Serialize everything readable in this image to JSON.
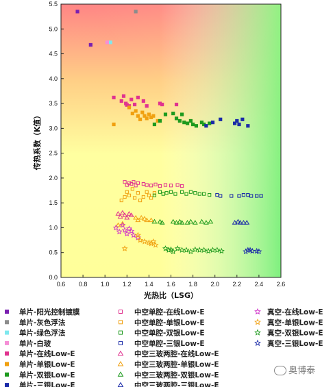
{
  "chart_data": {
    "type": "scatter",
    "xlabel": "光热比（LSG）",
    "ylabel": "传热系数（K值）",
    "xlim": [
      0.6,
      2.6
    ],
    "ylim": [
      0,
      5.5
    ],
    "xticks": [
      0.6,
      0.8,
      1.0,
      1.2,
      1.4,
      1.6,
      1.8,
      2.0,
      2.2,
      2.4,
      2.6
    ],
    "yticks": [
      0.0,
      0.5,
      1.0,
      1.5,
      2.0,
      2.5,
      3.0,
      3.5,
      4.0,
      4.5,
      5.0,
      5.5
    ],
    "background": "gradient: red top-left, yellow center, green bottom-right",
    "legend_placement": "below plot, three columns",
    "series": [
      {
        "name": "单片-阳光控制镀膜",
        "marker": "square-filled",
        "color": "#7a1fb0",
        "column": 0,
        "points": [
          [
            0.75,
            5.35
          ],
          [
            0.87,
            4.68
          ]
        ]
      },
      {
        "name": "单片-灰色浮法",
        "marker": "square-filled",
        "color": "#8c8c8c",
        "column": 0,
        "points": [
          [
            1.28,
            5.35
          ]
        ]
      },
      {
        "name": "单片-绿色浮法",
        "marker": "square-filled",
        "color": "#7fe8ee",
        "column": 0,
        "points": [
          [
            1.05,
            4.73
          ]
        ]
      },
      {
        "name": "单片-白玻",
        "marker": "square-filled",
        "color": "#f58fd6",
        "column": 0,
        "points": [
          [
            1.02,
            4.73
          ]
        ]
      },
      {
        "name": "单片-在线Low-E",
        "marker": "square-filled",
        "color": "#e0338f",
        "column": 0,
        "points": [
          [
            1.08,
            3.62
          ],
          [
            1.15,
            3.55
          ],
          [
            1.17,
            3.65
          ],
          [
            1.19,
            3.5
          ],
          [
            1.2,
            3.47
          ],
          [
            1.22,
            3.45
          ],
          [
            1.24,
            3.58
          ],
          [
            1.27,
            3.48
          ],
          [
            1.3,
            3.62
          ],
          [
            1.35,
            3.55
          ],
          [
            1.38,
            3.45
          ],
          [
            1.5,
            3.5
          ],
          [
            1.52,
            3.48
          ],
          [
            1.65,
            3.48
          ]
        ]
      },
      {
        "name": "单片-单银Low-E",
        "marker": "square-filled",
        "color": "#f0a010",
        "column": 0,
        "points": [
          [
            1.08,
            3.08
          ],
          [
            1.22,
            3.42
          ],
          [
            1.25,
            3.3
          ],
          [
            1.28,
            3.35
          ],
          [
            1.3,
            3.25
          ],
          [
            1.32,
            3.18
          ],
          [
            1.34,
            3.32
          ],
          [
            1.36,
            3.25
          ],
          [
            1.38,
            3.2
          ],
          [
            1.4,
            3.28
          ],
          [
            1.42,
            3.22
          ],
          [
            1.44,
            3.25
          ],
          [
            1.48,
            3.15
          ]
        ]
      },
      {
        "name": "单片-双银Low-E",
        "marker": "square-filled",
        "color": "#1e9a1e",
        "column": 0,
        "points": [
          [
            1.45,
            3.08
          ],
          [
            1.5,
            3.15
          ],
          [
            1.55,
            3.28
          ],
          [
            1.62,
            3.3
          ],
          [
            1.65,
            3.2
          ],
          [
            1.68,
            3.15
          ],
          [
            1.7,
            3.28
          ],
          [
            1.72,
            3.12
          ],
          [
            1.75,
            3.1
          ],
          [
            1.78,
            3.15
          ],
          [
            1.8,
            3.08
          ],
          [
            1.83,
            3.05
          ],
          [
            1.88,
            3.12
          ],
          [
            1.9,
            3.08
          ],
          [
            1.95,
            3.1
          ]
        ]
      },
      {
        "name": "单片-三银Low-E",
        "marker": "square-filled",
        "color": "#1a2aa8",
        "column": 0,
        "points": [
          [
            1.92,
            3.05
          ],
          [
            1.98,
            3.12
          ],
          [
            2.05,
            3.18
          ],
          [
            2.18,
            3.1
          ],
          [
            2.2,
            3.15
          ],
          [
            2.22,
            3.08
          ],
          [
            2.25,
            3.18
          ],
          [
            2.3,
            3.05
          ]
        ]
      },
      {
        "name": "中空单腔-在线Low-E",
        "marker": "square-open",
        "color": "#e0338f",
        "column": 1,
        "points": [
          [
            1.18,
            1.92
          ],
          [
            1.2,
            1.86
          ],
          [
            1.22,
            1.9
          ],
          [
            1.24,
            1.88
          ],
          [
            1.26,
            1.92
          ],
          [
            1.28,
            1.85
          ],
          [
            1.3,
            1.9
          ],
          [
            1.35,
            1.88
          ],
          [
            1.38,
            1.86
          ],
          [
            1.42,
            1.85
          ],
          [
            1.46,
            1.87
          ],
          [
            1.5,
            1.84
          ],
          [
            1.55,
            1.86
          ],
          [
            1.6,
            1.85
          ],
          [
            1.66,
            1.86
          ],
          [
            1.7,
            1.84
          ]
        ]
      },
      {
        "name": "中空单腔-单银Low-E",
        "marker": "square-open",
        "color": "#f0a010",
        "column": 1,
        "points": [
          [
            1.15,
            1.55
          ],
          [
            1.18,
            1.62
          ],
          [
            1.2,
            1.72
          ],
          [
            1.22,
            1.65
          ],
          [
            1.25,
            1.78
          ],
          [
            1.27,
            1.6
          ],
          [
            1.3,
            1.7
          ],
          [
            1.32,
            1.55
          ],
          [
            1.35,
            1.62
          ],
          [
            1.38,
            1.72
          ],
          [
            1.4,
            1.65
          ],
          [
            1.42,
            1.6
          ],
          [
            1.45,
            1.7
          ]
        ]
      },
      {
        "name": "中空单腔-双银Low-E",
        "marker": "square-open",
        "color": "#1e9a1e",
        "column": 1,
        "points": [
          [
            1.45,
            1.65
          ],
          [
            1.5,
            1.72
          ],
          [
            1.53,
            1.68
          ],
          [
            1.56,
            1.7
          ],
          [
            1.6,
            1.72
          ],
          [
            1.64,
            1.68
          ],
          [
            1.7,
            1.72
          ],
          [
            1.74,
            1.68
          ],
          [
            1.78,
            1.72
          ],
          [
            1.82,
            1.7
          ],
          [
            1.86,
            1.68
          ],
          [
            1.9,
            1.68
          ],
          [
            1.95,
            1.66
          ]
        ]
      },
      {
        "name": "中空单腔-三银Low-E",
        "marker": "square-open",
        "color": "#1a2aa8",
        "column": 1,
        "points": [
          [
            2.02,
            1.66
          ],
          [
            2.05,
            1.64
          ],
          [
            2.15,
            1.64
          ],
          [
            2.22,
            1.64
          ],
          [
            2.26,
            1.66
          ],
          [
            2.3,
            1.66
          ],
          [
            2.33,
            1.64
          ],
          [
            2.38,
            1.64
          ],
          [
            2.42,
            1.64
          ]
        ]
      },
      {
        "name": "中空三玻两腔-在线Low-E",
        "marker": "triangle-open",
        "color": "#e0338f",
        "column": 1,
        "points": [
          [
            1.12,
            1.28
          ],
          [
            1.14,
            1.22
          ],
          [
            1.16,
            1.3
          ],
          [
            1.18,
            1.25
          ],
          [
            1.2,
            1.2
          ],
          [
            1.22,
            1.28
          ],
          [
            1.24,
            1.25
          ]
        ]
      },
      {
        "name": "中空三玻两腔-单银Low-E",
        "marker": "triangle-open",
        "color": "#f0a010",
        "column": 1,
        "points": [
          [
            1.12,
            1.05
          ],
          [
            1.16,
            1.08
          ],
          [
            1.28,
            1.2
          ],
          [
            1.3,
            1.15
          ],
          [
            1.33,
            1.2
          ],
          [
            1.36,
            1.18
          ],
          [
            1.38,
            1.15
          ],
          [
            1.42,
            1.15
          ]
        ]
      },
      {
        "name": "中空三玻两腔-双银Low-E",
        "marker": "triangle-open",
        "color": "#1e9a1e",
        "column": 1,
        "points": [
          [
            1.45,
            1.12
          ],
          [
            1.5,
            1.12
          ],
          [
            1.52,
            1.1
          ],
          [
            1.62,
            1.12
          ],
          [
            1.65,
            1.1
          ],
          [
            1.68,
            1.12
          ],
          [
            1.7,
            1.1
          ],
          [
            1.75,
            1.1
          ],
          [
            1.78,
            1.12
          ],
          [
            1.82,
            1.1
          ],
          [
            1.88,
            1.12
          ],
          [
            1.92,
            1.1
          ],
          [
            1.96,
            1.12
          ]
        ]
      },
      {
        "name": "中空三玻两腔-三银Low-E",
        "marker": "triangle-open",
        "color": "#1a2aa8",
        "column": 1,
        "points": [
          [
            2.18,
            1.1
          ],
          [
            2.21,
            1.12
          ],
          [
            2.23,
            1.1
          ],
          [
            2.26,
            1.1
          ],
          [
            2.29,
            1.1
          ]
        ]
      },
      {
        "name": "真空-在线Low-E",
        "marker": "star",
        "color": "#d030c8",
        "column": 2,
        "points": [
          [
            1.1,
            1.0
          ],
          [
            1.13,
            0.92
          ],
          [
            1.16,
            1.05
          ],
          [
            1.18,
            0.95
          ],
          [
            1.2,
            0.88
          ],
          [
            1.22,
            0.98
          ],
          [
            1.24,
            0.93
          ],
          [
            1.26,
            0.85
          ],
          [
            1.3,
            0.8
          ]
        ]
      },
      {
        "name": "真空-单银Low-E",
        "marker": "star",
        "color": "#f0a010",
        "column": 2,
        "points": [
          [
            1.18,
            0.58
          ],
          [
            1.3,
            0.85
          ],
          [
            1.32,
            0.75
          ],
          [
            1.36,
            0.72
          ],
          [
            1.4,
            0.7
          ],
          [
            1.42,
            0.68
          ],
          [
            1.44,
            0.72
          ],
          [
            1.46,
            0.65
          ]
        ]
      },
      {
        "name": "真空-双银Low-E",
        "marker": "star",
        "color": "#1e9a1e",
        "column": 2,
        "points": [
          [
            1.55,
            0.58
          ],
          [
            1.58,
            0.55
          ],
          [
            1.6,
            0.56
          ],
          [
            1.62,
            0.52
          ],
          [
            1.66,
            0.58
          ],
          [
            1.7,
            0.55
          ],
          [
            1.74,
            0.55
          ],
          [
            1.78,
            0.52
          ],
          [
            1.82,
            0.56
          ],
          [
            1.86,
            0.55
          ],
          [
            1.9,
            0.55
          ],
          [
            1.94,
            0.53
          ],
          [
            1.98,
            0.55
          ],
          [
            2.02,
            0.55
          ],
          [
            2.06,
            0.53
          ]
        ]
      },
      {
        "name": "真空-三银Low-E",
        "marker": "star",
        "color": "#1a2aa8",
        "column": 2,
        "points": [
          [
            2.28,
            0.52
          ],
          [
            2.3,
            0.55
          ],
          [
            2.32,
            0.55
          ],
          [
            2.34,
            0.53
          ],
          [
            2.38,
            0.53
          ],
          [
            2.4,
            0.52
          ]
        ]
      }
    ]
  },
  "watermark": {
    "text": "奥博泰"
  }
}
